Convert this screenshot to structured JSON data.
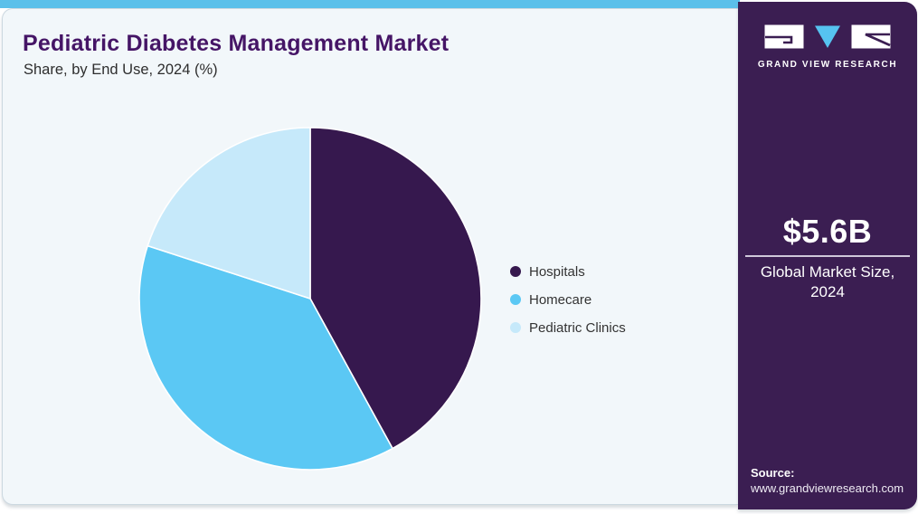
{
  "header": {
    "title": "Pediatric Diabetes Management Market",
    "subtitle": "Share, by End Use, 2024 (%)"
  },
  "chart_data": {
    "type": "pie",
    "title": "Pediatric Diabetes Management Market Share, by End Use, 2024 (%)",
    "unit": "percent",
    "start_angle_deg": -90,
    "direction": "clockwise",
    "legend_position": "right",
    "slices": [
      {
        "label": "Hospitals",
        "value": 42,
        "color": "#36184E"
      },
      {
        "label": "Homecare",
        "value": 38,
        "color": "#5BC8F4"
      },
      {
        "label": "Pediatric Clinics",
        "value": 20,
        "color": "#C6E9FA"
      }
    ]
  },
  "sidebar": {
    "brand_name": "GRAND VIEW RESEARCH",
    "market_size": {
      "value": "$5.6B",
      "label_line1": "Global Market Size,",
      "label_line2": "2024"
    },
    "source": {
      "label": "Source:",
      "url": "www.grandviewresearch.com"
    }
  },
  "theme": {
    "top_strip_color": "#5BC0EA",
    "card_background": "#F2F7FA",
    "sidebar_background": "#3B1E52",
    "title_color": "#451566",
    "logo_triangle_color": "#56C3F0",
    "slice_separator_color": "#FFFFFF"
  }
}
